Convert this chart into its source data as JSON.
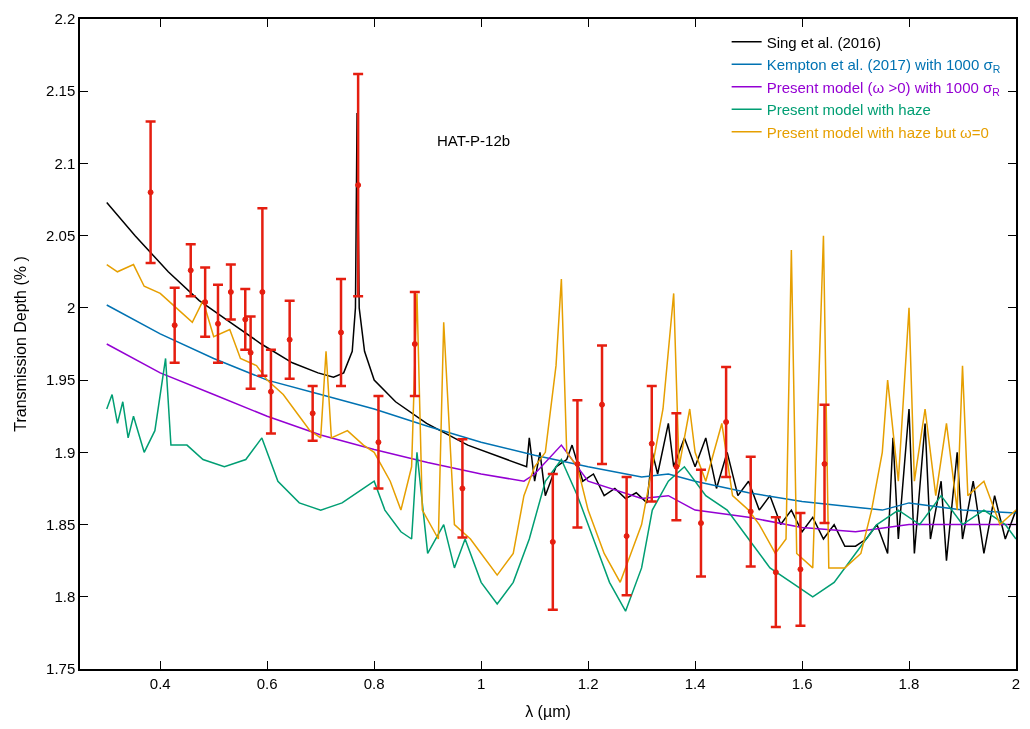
{
  "chart_data": {
    "type": "line",
    "xlabel": "λ (µm)",
    "ylabel": "Transmission Depth (% )",
    "annotations": [
      "HAT-P-12b"
    ],
    "xlim": [
      0.25,
      2
    ],
    "xticks": [
      0.4,
      0.6,
      0.8,
      1,
      1.2,
      1.4,
      1.6,
      1.8,
      2
    ],
    "ylim": [
      1.75,
      2.2
    ],
    "yticks": [
      1.75,
      1.8,
      1.85,
      1.9,
      1.95,
      2,
      2.05,
      2.1,
      2.15,
      2.2
    ],
    "grid": false,
    "legend": "top right",
    "series": [
      {
        "name": "Sing et al. (2016)",
        "color": "#000000",
        "x": [
          0.3,
          0.353,
          0.415,
          0.473,
          0.531,
          0.589,
          0.647,
          0.695,
          0.724,
          0.743,
          0.759,
          0.765,
          0.768,
          0.772,
          0.782,
          0.8,
          0.84,
          0.898,
          0.975,
          1.085,
          1.09,
          1.1,
          1.11,
          1.12,
          1.14,
          1.16,
          1.17,
          1.19,
          1.21,
          1.23,
          1.25,
          1.27,
          1.29,
          1.31,
          1.32,
          1.33,
          1.35,
          1.36,
          1.38,
          1.4,
          1.42,
          1.44,
          1.46,
          1.48,
          1.5,
          1.52,
          1.54,
          1.56,
          1.58,
          1.6,
          1.62,
          1.64,
          1.66,
          1.68,
          1.7,
          1.72,
          1.74,
          1.76,
          1.77,
          1.78,
          1.8,
          1.81,
          1.83,
          1.84,
          1.86,
          1.87,
          1.89,
          1.9,
          1.92,
          1.94,
          1.96,
          1.98,
          2.0
        ],
        "values": [
          2.073,
          2.05,
          2.025,
          2.005,
          1.99,
          1.975,
          1.962,
          1.955,
          1.952,
          1.955,
          1.97,
          2.0,
          2.135,
          2.0,
          1.97,
          1.95,
          1.935,
          1.92,
          1.905,
          1.89,
          1.91,
          1.88,
          1.9,
          1.87,
          1.89,
          1.895,
          1.905,
          1.88,
          1.885,
          1.87,
          1.875,
          1.868,
          1.872,
          1.865,
          1.9,
          1.885,
          1.92,
          1.89,
          1.91,
          1.89,
          1.91,
          1.875,
          1.9,
          1.87,
          1.88,
          1.86,
          1.87,
          1.85,
          1.86,
          1.845,
          1.855,
          1.84,
          1.85,
          1.835,
          1.835,
          1.84,
          1.85,
          1.83,
          1.91,
          1.84,
          1.93,
          1.83,
          1.92,
          1.84,
          1.88,
          1.825,
          1.9,
          1.84,
          1.88,
          1.83,
          1.87,
          1.84,
          1.86
        ]
      },
      {
        "name": "Kempton et al. (2017) with 1000 σ$_{R}$",
        "color": "#0072b2",
        "x": [
          0.3,
          0.4,
          0.5,
          0.6,
          0.7,
          0.8,
          0.9,
          1.0,
          1.1,
          1.2,
          1.3,
          1.35,
          1.4,
          1.5,
          1.6,
          1.7,
          1.75,
          1.8,
          1.9,
          2.0
        ],
        "values": [
          2.002,
          1.982,
          1.965,
          1.95,
          1.94,
          1.93,
          1.918,
          1.907,
          1.898,
          1.89,
          1.883,
          1.885,
          1.88,
          1.872,
          1.866,
          1.862,
          1.86,
          1.865,
          1.86,
          1.858
        ]
      },
      {
        "name": "Present model (ω >0) with 1000 σ$_{R}$",
        "color": "#9400d3",
        "x": [
          0.3,
          0.4,
          0.5,
          0.6,
          0.7,
          0.8,
          0.9,
          1.0,
          1.08,
          1.1,
          1.15,
          1.2,
          1.3,
          1.35,
          1.4,
          1.5,
          1.6,
          1.7,
          1.8,
          1.9,
          2.0
        ],
        "values": [
          1.975,
          1.955,
          1.94,
          1.925,
          1.912,
          1.902,
          1.893,
          1.885,
          1.88,
          1.885,
          1.905,
          1.88,
          1.868,
          1.87,
          1.86,
          1.855,
          1.848,
          1.845,
          1.85,
          1.85,
          1.85
        ]
      },
      {
        "name": "Present model with haze",
        "color": "#009e73",
        "x": [
          0.3,
          0.31,
          0.32,
          0.33,
          0.34,
          0.35,
          0.37,
          0.39,
          0.41,
          0.42,
          0.45,
          0.48,
          0.52,
          0.56,
          0.59,
          0.62,
          0.66,
          0.7,
          0.74,
          0.78,
          0.8,
          0.82,
          0.85,
          0.87,
          0.88,
          0.9,
          0.93,
          0.95,
          0.97,
          1.0,
          1.03,
          1.06,
          1.09,
          1.12,
          1.15,
          1.18,
          1.21,
          1.24,
          1.27,
          1.3,
          1.32,
          1.35,
          1.38,
          1.42,
          1.46,
          1.5,
          1.54,
          1.58,
          1.62,
          1.66,
          1.7,
          1.74,
          1.78,
          1.82,
          1.86,
          1.9,
          1.94,
          1.98,
          2.0
        ],
        "values": [
          1.93,
          1.94,
          1.92,
          1.935,
          1.91,
          1.925,
          1.9,
          1.915,
          1.965,
          1.905,
          1.905,
          1.895,
          1.89,
          1.895,
          1.91,
          1.88,
          1.865,
          1.86,
          1.865,
          1.875,
          1.88,
          1.86,
          1.845,
          1.84,
          1.9,
          1.83,
          1.85,
          1.82,
          1.84,
          1.81,
          1.795,
          1.81,
          1.84,
          1.88,
          1.895,
          1.87,
          1.84,
          1.81,
          1.79,
          1.82,
          1.86,
          1.88,
          1.89,
          1.87,
          1.86,
          1.84,
          1.82,
          1.81,
          1.8,
          1.81,
          1.83,
          1.85,
          1.86,
          1.85,
          1.87,
          1.85,
          1.86,
          1.85,
          1.84
        ]
      },
      {
        "name": "Present model with haze but ω=0",
        "color": "#e69f00",
        "x": [
          0.3,
          0.32,
          0.35,
          0.37,
          0.4,
          0.43,
          0.46,
          0.48,
          0.5,
          0.53,
          0.55,
          0.58,
          0.6,
          0.63,
          0.66,
          0.68,
          0.7,
          0.71,
          0.72,
          0.75,
          0.78,
          0.8,
          0.83,
          0.85,
          0.87,
          0.88,
          0.89,
          0.92,
          0.93,
          0.95,
          0.98,
          1.0,
          1.03,
          1.06,
          1.08,
          1.1,
          1.12,
          1.14,
          1.15,
          1.16,
          1.18,
          1.2,
          1.23,
          1.26,
          1.28,
          1.3,
          1.32,
          1.34,
          1.36,
          1.37,
          1.39,
          1.4,
          1.42,
          1.45,
          1.47,
          1.5,
          1.52,
          1.55,
          1.57,
          1.58,
          1.59,
          1.62,
          1.64,
          1.65,
          1.68,
          1.71,
          1.73,
          1.75,
          1.76,
          1.78,
          1.8,
          1.81,
          1.83,
          1.85,
          1.87,
          1.89,
          1.9,
          1.91,
          1.94,
          1.97,
          2.0
        ],
        "values": [
          2.03,
          2.025,
          2.03,
          2.015,
          2.01,
          2.0,
          1.99,
          2.005,
          1.98,
          1.985,
          1.965,
          1.96,
          1.95,
          1.94,
          1.925,
          1.915,
          1.91,
          1.97,
          1.91,
          1.915,
          1.905,
          1.9,
          1.88,
          1.86,
          1.89,
          2.01,
          1.86,
          1.84,
          1.99,
          1.85,
          1.84,
          1.83,
          1.815,
          1.83,
          1.87,
          1.89,
          1.9,
          1.96,
          2.02,
          1.9,
          1.89,
          1.86,
          1.83,
          1.81,
          1.83,
          1.85,
          1.89,
          1.93,
          2.01,
          1.89,
          1.93,
          1.9,
          1.88,
          1.92,
          1.87,
          1.86,
          1.85,
          1.83,
          1.84,
          2.04,
          1.83,
          1.82,
          2.05,
          1.82,
          1.82,
          1.83,
          1.86,
          1.9,
          1.95,
          1.88,
          2.0,
          1.88,
          1.93,
          1.87,
          1.92,
          1.86,
          1.96,
          1.87,
          1.88,
          1.85,
          1.86
        ]
      },
      {
        "type": "scatter",
        "color": "#e51e10",
        "x": [
          0.382,
          0.427,
          0.457,
          0.484,
          0.508,
          0.532,
          0.559,
          0.569,
          0.591,
          0.607,
          0.642,
          0.685,
          0.738,
          0.77,
          0.808,
          0.876,
          0.965,
          1.134,
          1.18,
          1.226,
          1.272,
          1.319,
          1.365,
          1.411,
          1.458,
          1.504,
          1.551,
          1.597,
          1.642
        ],
        "values": [
          2.08,
          1.988,
          2.026,
          2.004,
          1.989,
          2.011,
          1.992,
          1.969,
          2.011,
          1.942,
          1.978,
          1.927,
          1.983,
          2.085,
          1.907,
          1.975,
          1.875,
          1.838,
          1.892,
          1.933,
          1.842,
          1.906,
          1.89,
          1.851,
          1.921,
          1.859,
          1.817,
          1.819,
          1.892
        ],
        "errors": [
          0.049,
          0.026,
          0.018,
          0.024,
          0.027,
          0.019,
          0.021,
          0.025,
          0.058,
          0.029,
          0.027,
          0.019,
          0.037,
          0.077,
          0.032,
          0.036,
          0.034,
          0.047,
          0.044,
          0.041,
          0.041,
          0.04,
          0.037,
          0.037,
          0.038,
          0.038,
          0.038,
          0.039,
          0.041
        ]
      }
    ]
  }
}
